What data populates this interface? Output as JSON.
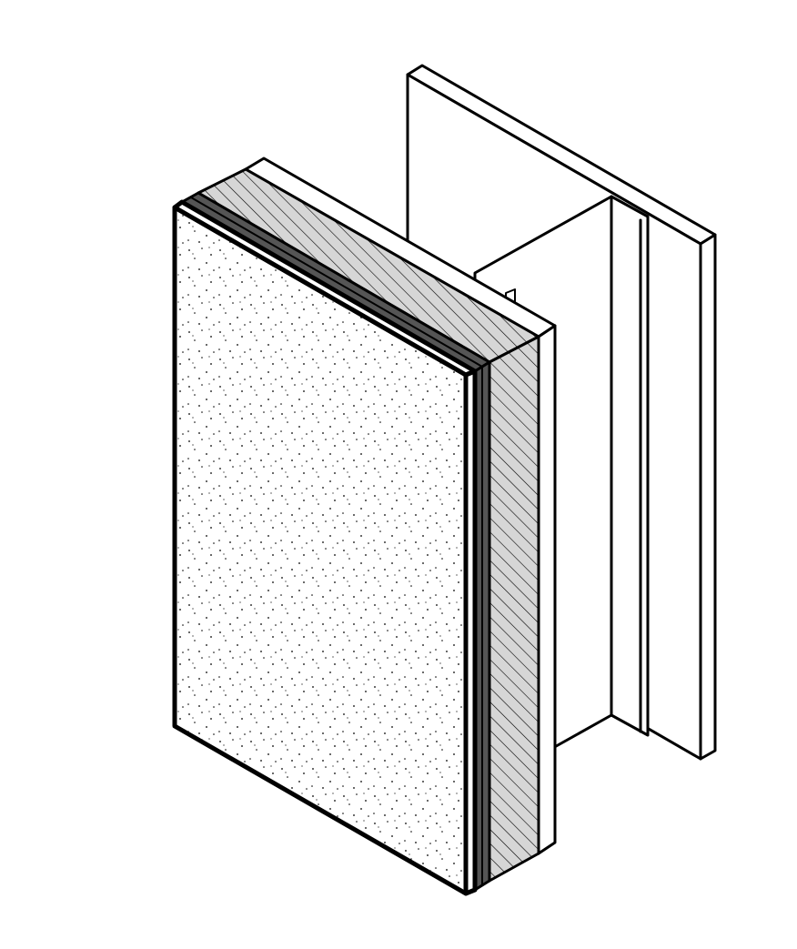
{
  "diagram": {
    "kind": "isometric wall assembly section",
    "components": [
      "steel-stud",
      "sheathing-board",
      "rigid-insulation",
      "membrane-layer",
      "stucco-finish-panel"
    ]
  },
  "colors": {
    "line": "#000000",
    "background": "#ffffff",
    "membrane": "#555555",
    "insulation_fill": "#d6d6d6",
    "stucco_fill": "#ffffff"
  }
}
